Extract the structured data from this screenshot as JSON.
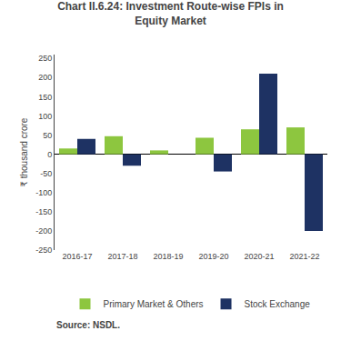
{
  "chart_data": {
    "type": "bar",
    "title": "Chart II.6.24: Investment Route-wise FPIs in\nEquity Market",
    "categories": [
      "2016-17",
      "2017-18",
      "2018-19",
      "2019-20",
      "2020-21",
      "2021-22"
    ],
    "series": [
      {
        "name": "Primary Market & Others",
        "color": "#8dc63f",
        "values": [
          15,
          47,
          10,
          43,
          65,
          70
        ]
      },
      {
        "name": "Stock Exchange",
        "color": "#1e3263",
        "values": [
          40,
          -30,
          0,
          -45,
          210,
          -200
        ]
      }
    ],
    "ylabel": "₹ thousand crore",
    "ylim": [
      -250,
      260
    ],
    "yticks": [
      -250,
      -200,
      -150,
      -100,
      -50,
      0,
      50,
      100,
      150,
      200,
      250
    ],
    "annotations": [
      "Source: NSDL."
    ],
    "grid": false,
    "legend": "bottom"
  }
}
